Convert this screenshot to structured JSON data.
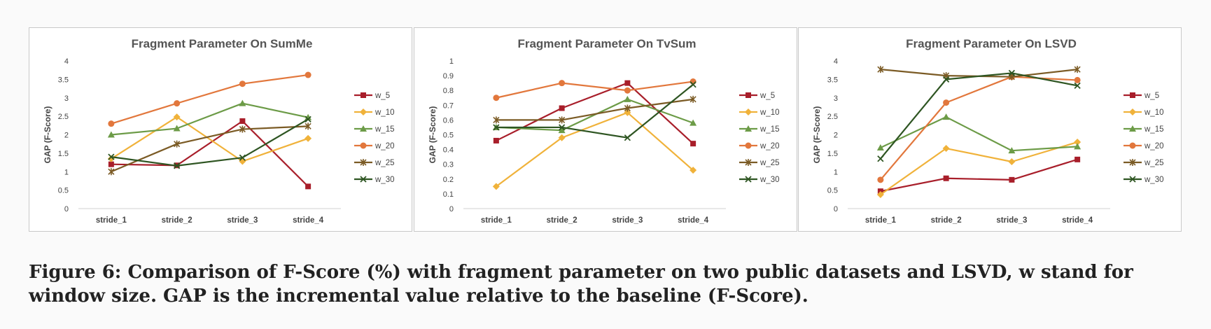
{
  "colors": {
    "w_5": "#a81e2a",
    "w_10": "#f0b23a",
    "w_15": "#6c9b47",
    "w_20": "#e2773c",
    "w_25": "#7b5b25",
    "w_30": "#2e5522"
  },
  "chart_data": [
    {
      "type": "line",
      "title": "Fragment Parameter On SumMe",
      "xlabel": "",
      "ylabel": "GAP (F-Score)",
      "categories": [
        "stride_1",
        "stride_2",
        "stride_3",
        "stride_4"
      ],
      "ylim": [
        0,
        4
      ],
      "yticks": [
        "0",
        "0.5",
        "1",
        "1.5",
        "2",
        "2.5",
        "3",
        "3.5",
        "4"
      ],
      "grid": false,
      "legend": "right",
      "series": [
        {
          "name": "w_5",
          "marker": "square",
          "values": [
            1.2,
            1.17,
            2.37,
            0.6
          ]
        },
        {
          "name": "w_10",
          "marker": "diamond",
          "values": [
            1.35,
            2.48,
            1.28,
            1.9
          ]
        },
        {
          "name": "w_15",
          "marker": "triangle",
          "values": [
            2.0,
            2.17,
            2.85,
            2.47
          ]
        },
        {
          "name": "w_20",
          "marker": "circle",
          "values": [
            2.3,
            2.85,
            3.38,
            3.62
          ]
        },
        {
          "name": "w_25",
          "marker": "star",
          "values": [
            1.0,
            1.75,
            2.15,
            2.23
          ]
        },
        {
          "name": "w_30",
          "marker": "x",
          "values": [
            1.4,
            1.16,
            1.38,
            2.42
          ]
        }
      ]
    },
    {
      "type": "line",
      "title": "Fragment Parameter On TvSum",
      "xlabel": "",
      "ylabel": "GAP (F-Score)",
      "categories": [
        "stride_1",
        "stride_2",
        "stride_3",
        "stride_4"
      ],
      "ylim": [
        0,
        1
      ],
      "yticks": [
        "0",
        "0.1",
        "0.2",
        "0.3",
        "0.4",
        "0.5",
        "0.6",
        "0.7",
        "0.8",
        "0.9",
        "1"
      ],
      "grid": false,
      "legend": "right",
      "series": [
        {
          "name": "w_5",
          "marker": "square",
          "values": [
            0.46,
            0.68,
            0.85,
            0.44
          ]
        },
        {
          "name": "w_10",
          "marker": "diamond",
          "values": [
            0.15,
            0.48,
            0.65,
            0.26
          ]
        },
        {
          "name": "w_15",
          "marker": "triangle",
          "values": [
            0.55,
            0.53,
            0.74,
            0.58
          ]
        },
        {
          "name": "w_20",
          "marker": "circle",
          "values": [
            0.75,
            0.85,
            0.8,
            0.86
          ]
        },
        {
          "name": "w_25",
          "marker": "star",
          "values": [
            0.6,
            0.6,
            0.68,
            0.74
          ]
        },
        {
          "name": "w_30",
          "marker": "x",
          "values": [
            0.55,
            0.55,
            0.48,
            0.84
          ]
        }
      ]
    },
    {
      "type": "line",
      "title": "Fragment Parameter On LSVD",
      "xlabel": "",
      "ylabel": "GAP (F-Score)",
      "categories": [
        "stride_1",
        "stride_2",
        "stride_3",
        "stride_4"
      ],
      "ylim": [
        0,
        4
      ],
      "yticks": [
        "0",
        "0.5",
        "1",
        "1.5",
        "2",
        "2.5",
        "3",
        "3.5",
        "4"
      ],
      "grid": false,
      "legend": "right",
      "series": [
        {
          "name": "w_5",
          "marker": "square",
          "values": [
            0.47,
            0.82,
            0.78,
            1.33
          ]
        },
        {
          "name": "w_10",
          "marker": "diamond",
          "values": [
            0.38,
            1.63,
            1.27,
            1.8
          ]
        },
        {
          "name": "w_15",
          "marker": "triangle",
          "values": [
            1.65,
            2.48,
            1.57,
            1.68
          ]
        },
        {
          "name": "w_20",
          "marker": "circle",
          "values": [
            0.78,
            2.87,
            3.57,
            3.48
          ]
        },
        {
          "name": "w_25",
          "marker": "star",
          "values": [
            3.77,
            3.6,
            3.57,
            3.77
          ]
        },
        {
          "name": "w_30",
          "marker": "x",
          "values": [
            1.35,
            3.5,
            3.67,
            3.33
          ]
        }
      ]
    }
  ],
  "caption": {
    "label": "Figure 6:",
    "text": " Comparison of F-Score (%) with fragment parameter on two public datasets and LSVD, w stand for window size. GAP is the incremental value relative to the baseline (F-Score)."
  }
}
